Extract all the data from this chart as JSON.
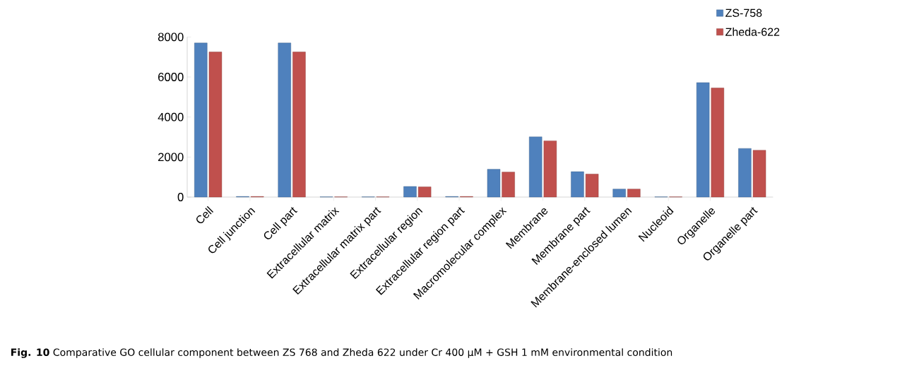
{
  "chart_data": {
    "type": "bar",
    "categories": [
      "Cell",
      "Cell junction",
      "Cell part",
      "Extracellular matrix",
      "Extracellular matrix part",
      "Extracellular region",
      "Extracellular region part",
      "Macromolecular complex",
      "Membrane",
      "Membrane part",
      "Membrane-enclosed lumen",
      "Nucleoid",
      "Organelle",
      "Organelle part"
    ],
    "series": [
      {
        "name": "ZS-758",
        "color": "#4f81bd",
        "values": [
          7700,
          30,
          7700,
          10,
          10,
          530,
          30,
          1390,
          3010,
          1270,
          400,
          10,
          5720,
          2430
        ]
      },
      {
        "name": "Zheda-622",
        "color": "#c0504d",
        "values": [
          7250,
          30,
          7250,
          10,
          10,
          510,
          30,
          1250,
          2810,
          1150,
          400,
          10,
          5450,
          2340
        ]
      }
    ],
    "ylim": [
      0,
      8000
    ],
    "yticks": [
      0,
      2000,
      4000,
      6000,
      8000
    ],
    "legend": "top right",
    "grid": false,
    "annotations": [
      "**Fig. 10** Comparative GO cellular component between ZS 768 and Zheda 622 under Cr 400 μM + GSH 1 mM environmental condition"
    ]
  }
}
